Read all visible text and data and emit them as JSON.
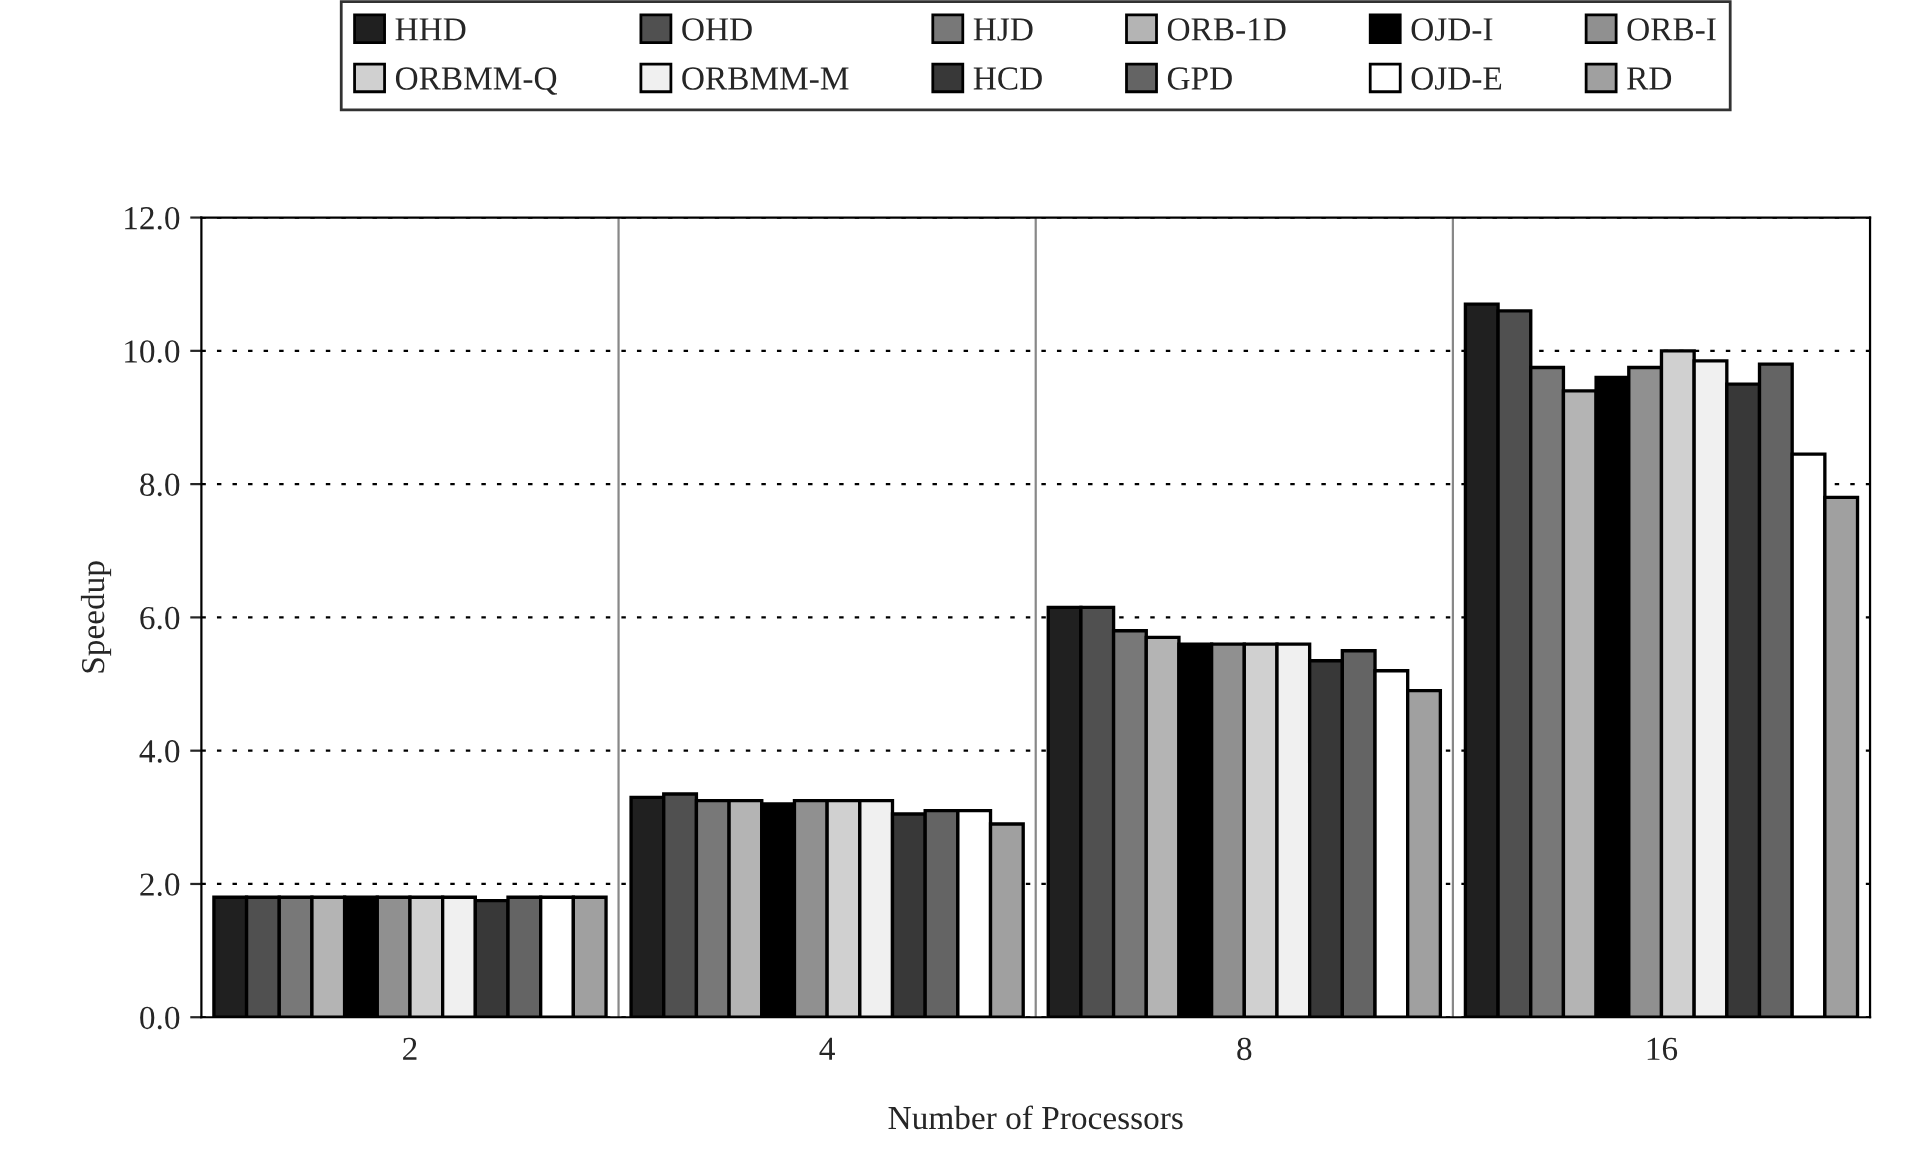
{
  "chart_data": {
    "type": "bar",
    "xlabel": "Number of Processors",
    "ylabel": "Speedup",
    "categories": [
      "2",
      "4",
      "8",
      "16"
    ],
    "series": [
      {
        "name": "HHD",
        "color": "#202020",
        "values": [
          1.8,
          3.3,
          6.15,
          10.7
        ]
      },
      {
        "name": "OHD",
        "color": "#505050",
        "values": [
          1.8,
          3.35,
          6.15,
          10.6
        ]
      },
      {
        "name": "HJD",
        "color": "#787878",
        "values": [
          1.8,
          3.25,
          5.8,
          9.75
        ]
      },
      {
        "name": "ORB-1D",
        "color": "#b4b4b4",
        "values": [
          1.8,
          3.25,
          5.7,
          9.4
        ]
      },
      {
        "name": "OJD-I",
        "color": "#000000",
        "values": [
          1.8,
          3.2,
          5.6,
          9.6
        ]
      },
      {
        "name": "ORB-I",
        "color": "#909090",
        "values": [
          1.8,
          3.25,
          5.6,
          9.75
        ]
      },
      {
        "name": "ORBMM-Q",
        "color": "#d0d0d0",
        "values": [
          1.8,
          3.25,
          5.6,
          10.0
        ]
      },
      {
        "name": "ORBMM-M",
        "color": "#f0f0f0",
        "values": [
          1.8,
          3.25,
          5.6,
          9.85
        ]
      },
      {
        "name": "HCD",
        "color": "#383838",
        "values": [
          1.75,
          3.05,
          5.35,
          9.5
        ]
      },
      {
        "name": "GPD",
        "color": "#646464",
        "values": [
          1.8,
          3.1,
          5.5,
          9.8
        ]
      },
      {
        "name": "OJD-E",
        "color": "#ffffff",
        "values": [
          1.8,
          3.1,
          5.2,
          8.45
        ]
      },
      {
        "name": "RD",
        "color": "#a0a0a0",
        "values": [
          1.8,
          2.9,
          4.9,
          7.8
        ]
      }
    ],
    "ylim": [
      0,
      12
    ],
    "yticks": [
      {
        "value": 0,
        "label": "0.0"
      },
      {
        "value": 2,
        "label": "2.0"
      },
      {
        "value": 4,
        "label": "4.0"
      },
      {
        "value": 6,
        "label": "6.0"
      },
      {
        "value": 8,
        "label": "8.0"
      },
      {
        "value": 10,
        "label": "10.0"
      },
      {
        "value": 12,
        "label": "12.0"
      }
    ],
    "grid": "y",
    "legend": "top"
  }
}
